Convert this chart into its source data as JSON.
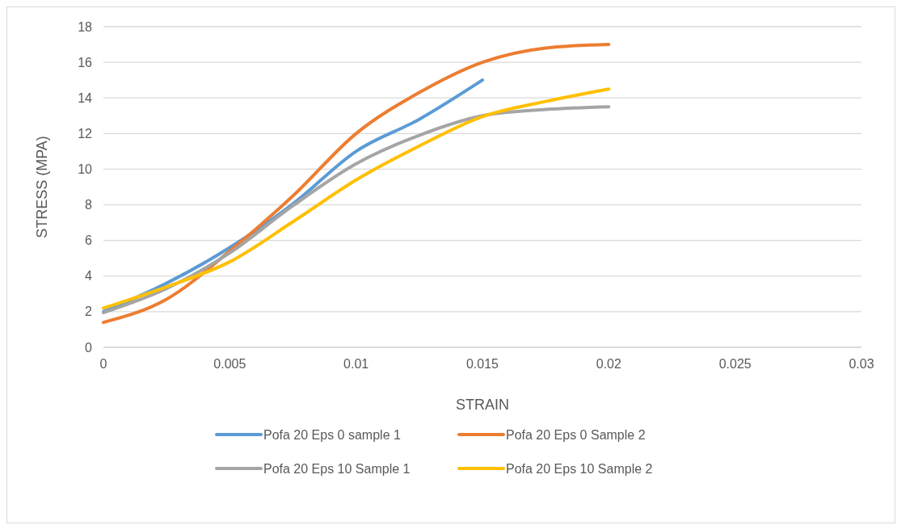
{
  "chart_data": {
    "type": "line",
    "xlabel": "STRAIN",
    "ylabel": "STRESS (MPA)",
    "xlim": [
      0,
      0.03
    ],
    "xticks": [
      0,
      0.005,
      0.01,
      0.015,
      0.02,
      0.025,
      0.03
    ],
    "ylim": [
      0,
      18
    ],
    "yticks": [
      0,
      2,
      4,
      6,
      8,
      10,
      12,
      14,
      16,
      18
    ],
    "grid": "y",
    "legend": "bottom",
    "marker": "none",
    "line_style": "solid",
    "series": [
      {
        "name": "Pofa 20 Eps 0 sample 1",
        "color": "#5b9bd5",
        "x": [
          0,
          0.0025,
          0.005,
          0.0075,
          0.01,
          0.0125,
          0.015
        ],
        "values": [
          2.0,
          3.6,
          5.6,
          8.05,
          11.0,
          12.8,
          15.0
        ]
      },
      {
        "name": "Pofa 20 Eps 0 Sample 2",
        "color": "#ed7d31",
        "x": [
          0,
          0.0025,
          0.005,
          0.0075,
          0.01,
          0.0125,
          0.015,
          0.0175,
          0.02
        ],
        "values": [
          1.4,
          2.7,
          5.4,
          8.5,
          12.0,
          14.3,
          16.0,
          16.8,
          17.0
        ]
      },
      {
        "name": "Pofa 20 Eps 10 Sample 1",
        "color": "#a5a5a5",
        "x": [
          0,
          0.0025,
          0.005,
          0.0075,
          0.01,
          0.0125,
          0.015,
          0.0175,
          0.02
        ],
        "values": [
          1.95,
          3.3,
          5.3,
          7.95,
          10.3,
          11.9,
          13.0,
          13.35,
          13.5
        ]
      },
      {
        "name": "Pofa 20 Eps 10 Sample 2",
        "color": "#ffc000",
        "x": [
          0,
          0.0025,
          0.005,
          0.0075,
          0.01,
          0.0125,
          0.015,
          0.0175,
          0.02
        ],
        "values": [
          2.2,
          3.4,
          4.8,
          7.05,
          9.4,
          11.3,
          12.95,
          13.8,
          14.5
        ]
      }
    ]
  }
}
